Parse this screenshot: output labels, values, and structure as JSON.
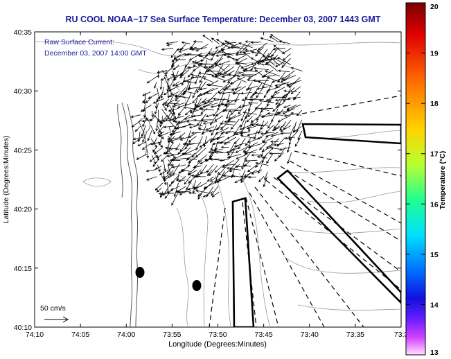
{
  "title": "RU COOL  NOAA−17  Sea Surface Temperature:  December 03, 2007 1443 GMT",
  "annotation": {
    "line1": "Raw Surface Current:",
    "line2": "December 03, 2007 14:00 GMT"
  },
  "scale_label": "50 cm/s",
  "xlabel": "Longitude (Degrees:Minutes)",
  "ylabel": "Latitude (Degrees:Minutes)",
  "x_ticks": [
    "74:10",
    "74:05",
    "74:00",
    "73:55",
    "73:50",
    "73:45",
    "73:40",
    "73:35",
    "73:3"
  ],
  "y_ticks": [
    "40:35",
    "40:30",
    "40:25",
    "40:20",
    "40:15",
    "40:10"
  ],
  "colorbar": {
    "label": "Temperature (°C)",
    "ticks": [
      "20",
      "19",
      "18",
      "17",
      "16",
      "15",
      "14",
      "13"
    ],
    "min": 13,
    "max": 20
  },
  "colors": {
    "title": "#1a1a9c",
    "annotation": "#1a1a9c",
    "coast": "#555555",
    "bathy": "#999999",
    "vectors": "#000000"
  }
}
